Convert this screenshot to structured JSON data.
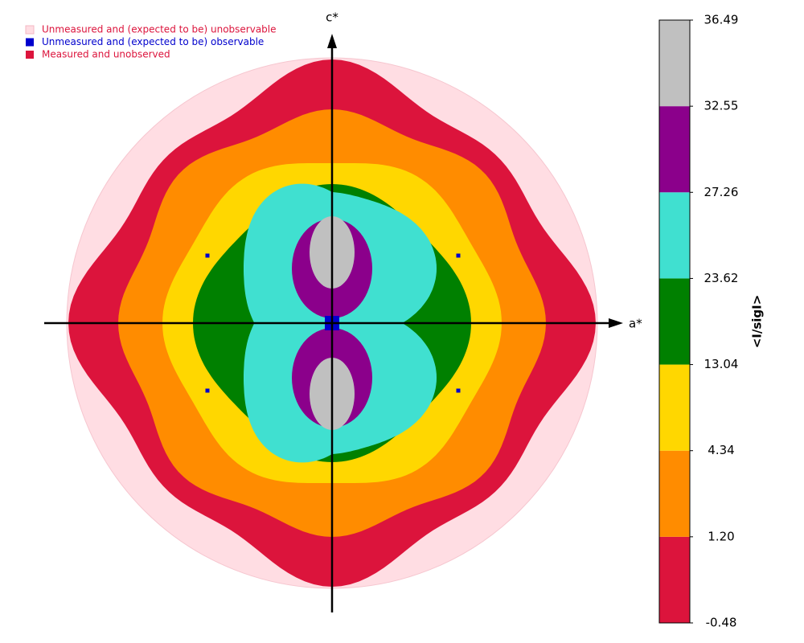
{
  "chart_data": {
    "type": "reciprocal-map",
    "xlabel": "a*",
    "ylabel": "c*",
    "legend": [
      {
        "label": "Unmeasured and (expected to be) unobservable",
        "color": "#ffdde3"
      },
      {
        "label": "Unmeasured and (expected to be) observable",
        "color": "#0000cd"
      },
      {
        "label": "Measured and unobserved",
        "color": "#dc143c"
      }
    ],
    "colorbar": {
      "label": "<I/sigI>",
      "ticks": [
        -0.48,
        {
          "value": 1.2,
          "label": "1.20"
        },
        4.34,
        13.04,
        23.62,
        27.26,
        32.55,
        36.49
      ],
      "colors": [
        "#dc143c",
        "#ff8c00",
        "#ffd700",
        "#008000",
        "#40e0d0",
        "#8b008b",
        "#c0c0c0"
      ]
    }
  }
}
